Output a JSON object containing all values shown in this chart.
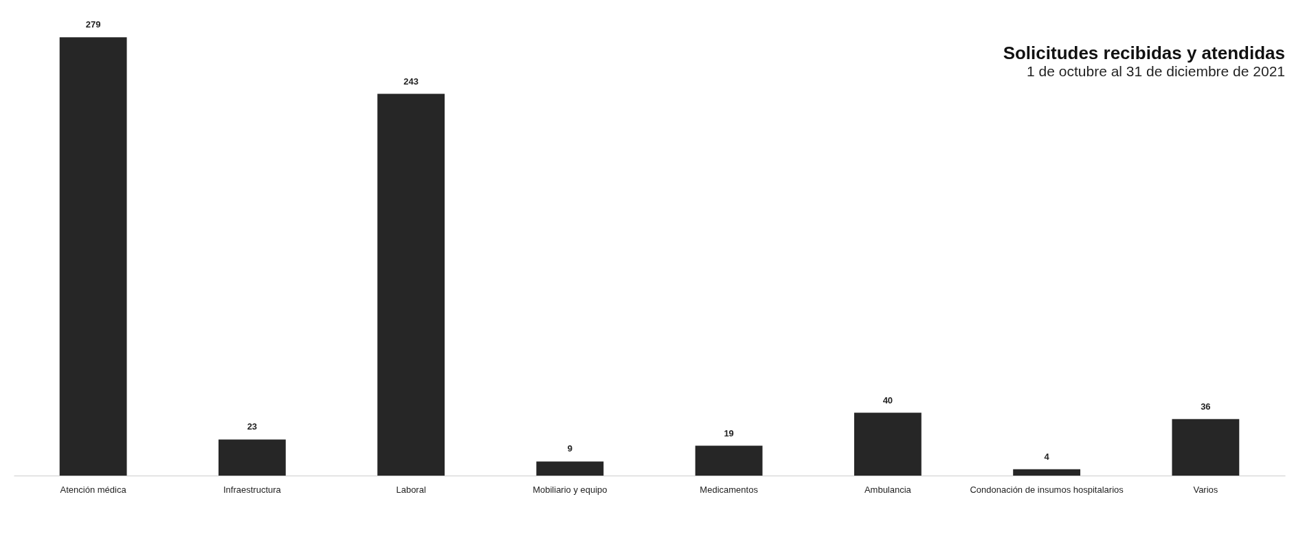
{
  "chart_data": {
    "type": "bar",
    "title": "Solicitudes recibidas y atendidas",
    "subtitle": "1 de octubre al 31 de diciembre de 2021",
    "categories": [
      "Atención médica",
      "Infraestructura",
      "Laboral",
      "Mobiliario y equipo",
      "Medicamentos",
      "Ambulancia",
      "Condonación de insumos hospitalarios",
      "Varios"
    ],
    "values": [
      279,
      23,
      243,
      9,
      19,
      40,
      4,
      36
    ],
    "color": "#262626",
    "data_labels": true
  }
}
